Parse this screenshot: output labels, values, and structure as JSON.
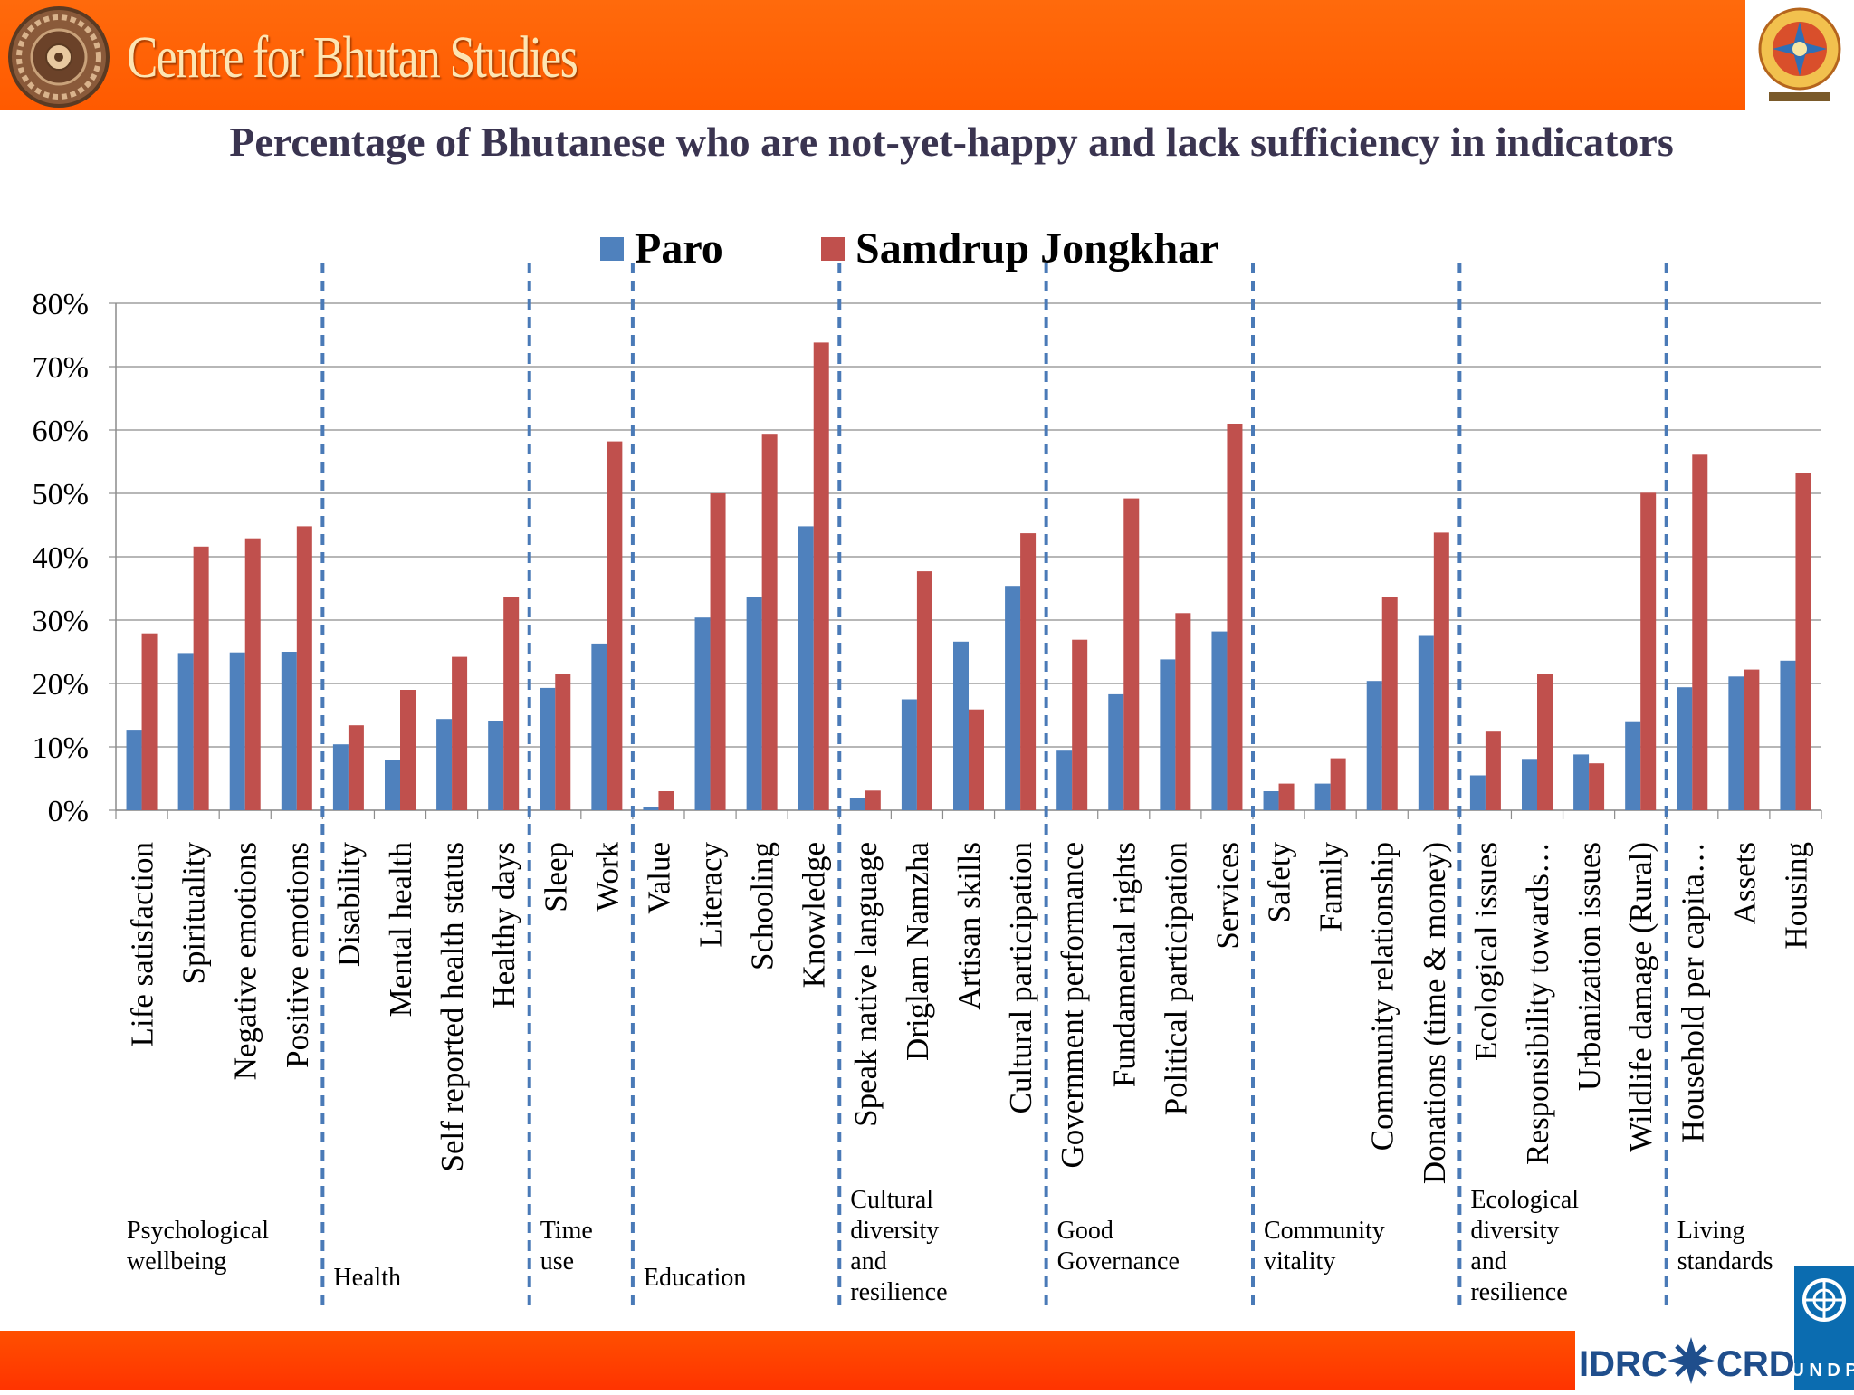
{
  "header": {
    "brand": "Centre for Bhutan Studies"
  },
  "partners": {
    "idrc": "IDRC",
    "crdi": "CRDI",
    "undp": "U N D P"
  },
  "colors": {
    "paro": "#4f81bd",
    "samdrup": "#c0504d",
    "header": "#ff6600",
    "footer": "#ff3c00",
    "divider": "#4a7ab7",
    "title": "#3a3450"
  },
  "chart_data": {
    "type": "bar",
    "title": "Percentage of Bhutanese who are not-yet-happy and lack  sufficiency in indicators",
    "ylim": [
      0,
      80
    ],
    "yticks": [
      "0%",
      "10%",
      "20%",
      "30%",
      "40%",
      "50%",
      "60%",
      "70%",
      "80%"
    ],
    "legend": "top-center",
    "grid": true,
    "categories": [
      "Life satisfaction",
      "Spirituality",
      "Negative emotions",
      "Positive emotions",
      "Disability",
      "Mental health",
      "Self reported health status",
      "Healthy days",
      "Sleep",
      "Work",
      "Value",
      "Literacy",
      "Schooling",
      "Knowledge",
      "Speak native language",
      "Driglam Namzha",
      "Artisan skills",
      "Cultural participation",
      "Government performance",
      "Fundamental rights",
      "Political participation",
      "Services",
      "Safety",
      "Family",
      "Community relationship",
      "Donations (time & money)",
      "Ecological issues",
      "Responsibility towards…",
      "Urbanization issues",
      "Wildlife damage (Rural)",
      "Household per capita…",
      "Assets",
      "Housing"
    ],
    "series": [
      {
        "name": "Paro",
        "values": [
          12.7,
          24.8,
          24.9,
          25.0,
          10.4,
          7.9,
          14.4,
          14.1,
          19.3,
          26.3,
          0.5,
          30.4,
          33.6,
          44.8,
          1.9,
          17.5,
          26.6,
          35.4,
          9.4,
          18.3,
          23.8,
          28.2,
          3.0,
          4.2,
          20.4,
          27.5,
          5.5,
          8.1,
          8.8,
          13.9,
          19.4,
          21.1,
          23.6
        ]
      },
      {
        "name": "Samdrup Jongkhar",
        "values": [
          27.9,
          41.6,
          42.9,
          44.8,
          13.4,
          19.0,
          24.2,
          33.6,
          21.5,
          58.2,
          3.0,
          50.0,
          59.4,
          73.8,
          3.1,
          37.7,
          15.9,
          43.7,
          26.9,
          49.2,
          31.1,
          61.0,
          4.2,
          8.2,
          33.6,
          43.8,
          12.4,
          21.5,
          7.4,
          50.1,
          56.1,
          22.2,
          53.2
        ]
      }
    ],
    "groups": [
      {
        "label": [
          "Psychological",
          "wellbeing"
        ],
        "start": 0,
        "end": 4
      },
      {
        "label": [
          "Health"
        ],
        "start": 4,
        "end": 8
      },
      {
        "label": [
          "Time",
          "use"
        ],
        "start": 8,
        "end": 10
      },
      {
        "label": [
          "Education"
        ],
        "start": 10,
        "end": 14
      },
      {
        "label": [
          "Cultural",
          "diversity",
          "and",
          "resilience"
        ],
        "start": 14,
        "end": 18
      },
      {
        "label": [
          "Good",
          "Governance"
        ],
        "start": 18,
        "end": 22
      },
      {
        "label": [
          "Community",
          "vitality"
        ],
        "start": 22,
        "end": 26
      },
      {
        "label": [
          "Ecological",
          "diversity",
          "and",
          "resilience"
        ],
        "start": 26,
        "end": 30
      },
      {
        "label": [
          "Living",
          "standards"
        ],
        "start": 30,
        "end": 33
      }
    ]
  }
}
